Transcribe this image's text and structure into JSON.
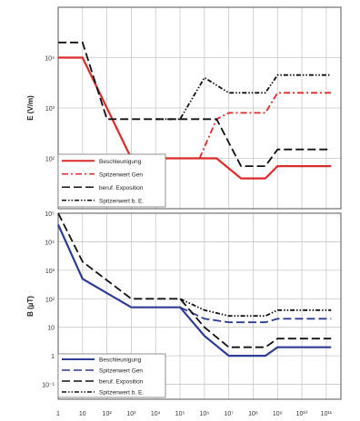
{
  "figure": {
    "x_ticks": [
      "1",
      "10",
      "10²",
      "10³",
      "10⁴",
      "10⁵",
      "10⁶",
      "10⁷",
      "10⁸",
      "10⁹",
      "10¹⁰",
      "10¹¹"
    ]
  },
  "colors": {
    "red": "#dd2a2a",
    "blue": "#2e3c92",
    "black": "#111111",
    "grid": "#c8c8c8",
    "frame": "#555555"
  },
  "chart_data": [
    {
      "type": "line",
      "id": "top",
      "title": "",
      "xlabel": "",
      "ylabel": "E (V/m)",
      "yscale": "log",
      "ylim": [
        10,
        100000
      ],
      "xlim": [
        0,
        11.6
      ],
      "y_ticks": [
        "10²",
        "10³",
        "10⁴"
      ],
      "legend_position": "bottom-left",
      "series": [
        {
          "name": "Beschleunigung",
          "style": "solid",
          "color": "red",
          "points": [
            [
              0,
              10000
            ],
            [
              1,
              10000
            ],
            [
              3,
              100
            ],
            [
              5.3,
              100
            ],
            [
              6.5,
              100
            ],
            [
              7.5,
              40
            ],
            [
              8.5,
              40
            ],
            [
              9,
              70
            ],
            [
              11.2,
              70
            ]
          ]
        },
        {
          "name": "Spitzenwert Gen",
          "style": "dashdot",
          "color": "red",
          "points": [
            [
              5.8,
              100
            ],
            [
              6.5,
              600
            ],
            [
              7,
              800
            ],
            [
              8.5,
              800
            ],
            [
              9,
              2000
            ],
            [
              11.2,
              2000
            ]
          ]
        },
        {
          "name": "beruf. Exposition",
          "style": "longdash",
          "color": "black",
          "points": [
            [
              0,
              20000
            ],
            [
              1,
              20000
            ],
            [
              2,
              600
            ],
            [
              4,
              600
            ],
            [
              5,
              600
            ],
            [
              6.5,
              600
            ],
            [
              7.5,
              70
            ],
            [
              8.5,
              70
            ],
            [
              9,
              150
            ],
            [
              11.2,
              150
            ]
          ]
        },
        {
          "name": "Spitzenwert b. E.",
          "style": "dashdotdot",
          "color": "black",
          "points": [
            [
              4,
              600
            ],
            [
              5,
              600
            ],
            [
              6,
              4000
            ],
            [
              7,
              2000
            ],
            [
              8.5,
              2000
            ],
            [
              9,
              4500
            ],
            [
              11.2,
              4500
            ]
          ]
        }
      ]
    },
    {
      "type": "line",
      "id": "bottom",
      "title": "",
      "xlabel": "",
      "ylabel": "B (µT)",
      "yscale": "log",
      "ylim": [
        0.03,
        100000
      ],
      "xlim": [
        0,
        11.6
      ],
      "y_ticks": [
        "10⁻¹",
        "1",
        "10",
        "10²",
        "10³",
        "10⁴",
        "10⁵"
      ],
      "legend_position": "bottom-left",
      "series": [
        {
          "name": "Beschleunigung",
          "style": "solid",
          "color": "blue",
          "points": [
            [
              0,
              40000
            ],
            [
              1,
              500
            ],
            [
              3,
              50
            ],
            [
              5,
              50
            ],
            [
              6,
              5
            ],
            [
              7,
              1
            ],
            [
              8.5,
              1
            ],
            [
              9,
              2
            ],
            [
              11.2,
              2
            ]
          ]
        },
        {
          "name": "Spitzenwert Gen",
          "style": "longdash",
          "color": "blue",
          "points": [
            [
              5,
              50
            ],
            [
              6,
              20
            ],
            [
              7,
              15
            ],
            [
              8.5,
              15
            ],
            [
              9,
              20
            ],
            [
              11.2,
              20
            ]
          ]
        },
        {
          "name": "beruf. Exposition",
          "style": "longdash",
          "color": "black",
          "points": [
            [
              0,
              100000
            ],
            [
              1,
              2000
            ],
            [
              3,
              100
            ],
            [
              5,
              100
            ],
            [
              6,
              10
            ],
            [
              7,
              2
            ],
            [
              8.5,
              2
            ],
            [
              9,
              4
            ],
            [
              11.2,
              4
            ]
          ]
        },
        {
          "name": "Spitzenwert b. E.",
          "style": "dashdotdot",
          "color": "black",
          "points": [
            [
              5,
              100
            ],
            [
              6,
              40
            ],
            [
              7,
              25
            ],
            [
              8.5,
              25
            ],
            [
              9,
              40
            ],
            [
              11.2,
              40
            ]
          ]
        }
      ]
    }
  ]
}
